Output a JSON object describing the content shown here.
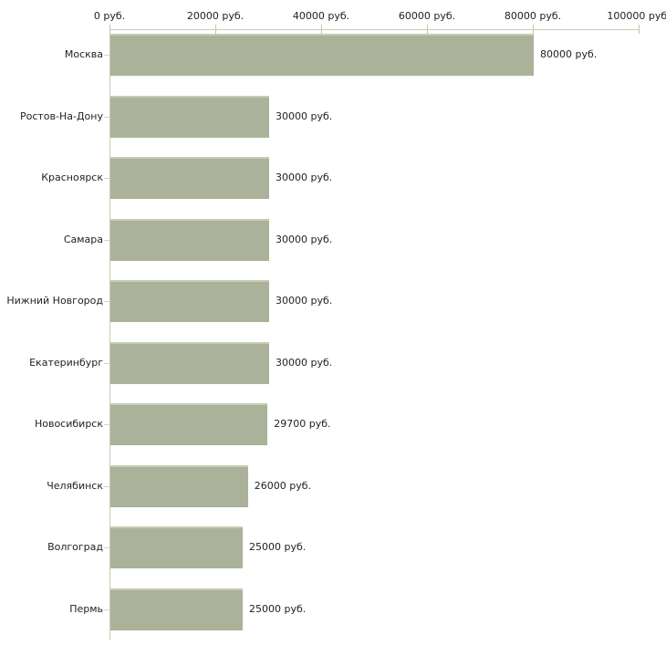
{
  "colors": {
    "background": "#ffffff",
    "bar_fill": "#abb29a",
    "bar_top_highlight": "#c6cbb4",
    "axis_line": "#c9ccb6",
    "tick": "#c3c7ab",
    "text": "#222222"
  },
  "chart_data": {
    "type": "bar",
    "orientation": "horizontal",
    "title": "",
    "xlabel": "",
    "ylabel": "",
    "grid": false,
    "legend": false,
    "x_axis": {
      "position": "top",
      "min": 0,
      "max": 100000,
      "tick_interval": 20000,
      "tick_values": [
        0,
        20000,
        40000,
        60000,
        80000,
        100000
      ],
      "tick_labels": [
        "0 руб.",
        "20000 руб.",
        "40000 руб.",
        "60000 руб.",
        "80000 руб.",
        "100000 руб."
      ]
    },
    "unit_suffix": "руб.",
    "categories": [
      "Москва",
      "Ростов-На-Дону",
      "Красноярск",
      "Самара",
      "Нижний Новгород",
      "Екатеринбург",
      "Новосибирск",
      "Челябинск",
      "Волгоград",
      "Пермь"
    ],
    "values": [
      80000,
      30000,
      30000,
      30000,
      30000,
      30000,
      29700,
      26000,
      25000,
      25000
    ],
    "value_labels": [
      "80000 руб.",
      "30000 руб.",
      "30000 руб.",
      "30000 руб.",
      "30000 руб.",
      "30000 руб.",
      "29700 руб.",
      "26000 руб.",
      "25000 руб.",
      "25000 руб."
    ]
  }
}
